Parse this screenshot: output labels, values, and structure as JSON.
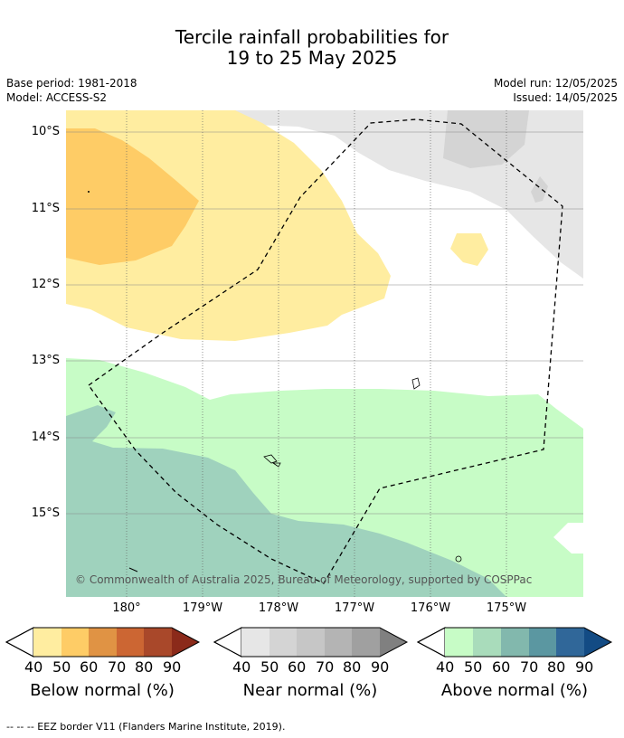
{
  "title": {
    "line1": "Tercile rainfall probabilities for",
    "line2": "19 to 25 May 2025"
  },
  "meta": {
    "base_period": "Base period: 1981-2018",
    "model": "Model: ACCESS-S2",
    "model_run": "Model run: 12/05/2025",
    "issued": "Issued: 14/05/2025"
  },
  "map": {
    "lat_labels": [
      "10°S",
      "11°S",
      "12°S",
      "13°S",
      "14°S",
      "15°S"
    ],
    "lon_labels": [
      "180°",
      "179°W",
      "178°W",
      "177°W",
      "176°W",
      "175°W"
    ],
    "copyright": "© Commonwealth of Australia 2025, Bureau of Meteorology, supported by COSPPac",
    "colors": {
      "below_40": "#ffeda0",
      "below_50": "#fecc66",
      "near_40": "#e6e6e6",
      "near_50": "#d4d4d4",
      "above_40": "#c7fcc6",
      "above_50": "#9fd2bd",
      "grid": "#888888"
    }
  },
  "legends": {
    "tick_values": [
      "40",
      "50",
      "60",
      "70",
      "80",
      "90"
    ],
    "below": {
      "label": "Below normal (%)",
      "colors": [
        "#ffeda0",
        "#fecc66",
        "#e09344",
        "#cc6633",
        "#a9482a",
        "#8b2a1a"
      ]
    },
    "near": {
      "label": "Near normal (%)",
      "colors": [
        "#e6e6e6",
        "#d4d4d4",
        "#c6c6c6",
        "#b4b4b4",
        "#a0a0a0",
        "#808080"
      ]
    },
    "above": {
      "label": "Above normal (%)",
      "colors": [
        "#c7fcc6",
        "#a9dcbb",
        "#82b8ad",
        "#5b97a1",
        "#306799",
        "#134b84"
      ]
    }
  },
  "footnote": "--  --  -- EEZ border V11 (Flanders Marine Institute, 2019)."
}
